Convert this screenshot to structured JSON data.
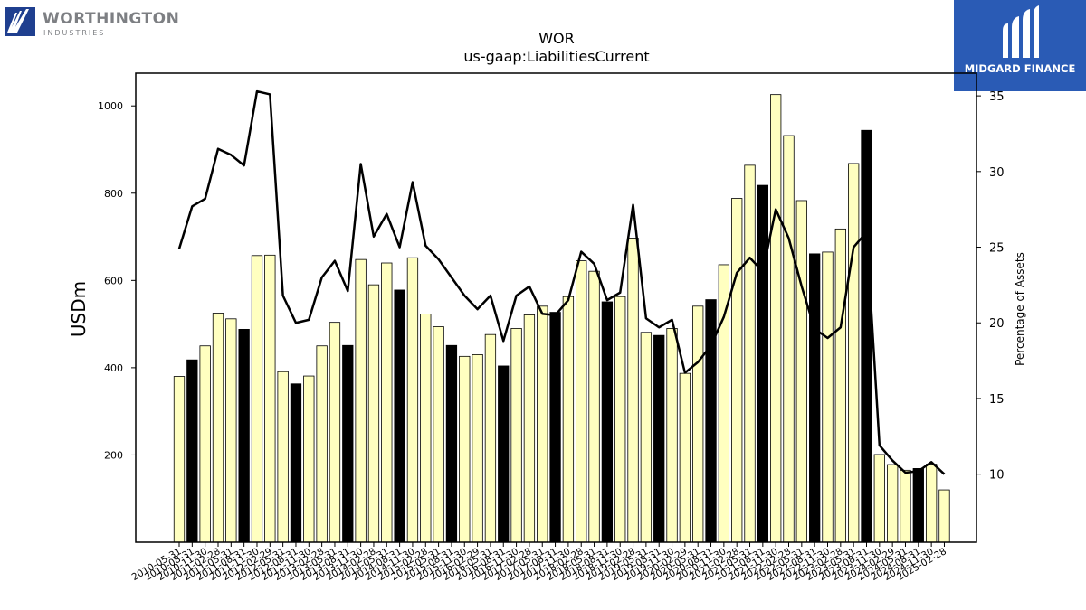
{
  "logos": {
    "left_name": "WORTHINGTON",
    "left_sub": "INDUSTRIES",
    "right_name": "MIDGARD FINANCE"
  },
  "colors": {
    "bar_fill": "#ffffc0",
    "bar_highlight": "#000000",
    "line": "#000000",
    "brand_blue": "#2a5bb5"
  },
  "chart_data": {
    "type": "bar",
    "title": "WOR",
    "subtitle": "us-gaap:LiabilitiesCurrent",
    "ylabel": "USDm",
    "y2label": "Percentage of Assets",
    "ylim": [
      0,
      1075
    ],
    "y2lim": [
      5.5,
      36.5
    ],
    "yticks": [
      200,
      400,
      600,
      800,
      1000
    ],
    "y2ticks": [
      10,
      15,
      20,
      25,
      30,
      35
    ],
    "legend": "none",
    "grid": false,
    "categories": [
      "2010-05-31",
      "2010-08-31",
      "2010-11-30",
      "2011-02-28",
      "2011-05-31",
      "2011-08-31",
      "2011-11-30",
      "2012-02-29",
      "2012-05-31",
      "2012-08-31",
      "2012-11-30",
      "2013-02-28",
      "2013-05-31",
      "2013-08-31",
      "2013-11-30",
      "2014-02-28",
      "2014-05-31",
      "2014-08-31",
      "2014-11-30",
      "2015-02-28",
      "2015-05-31",
      "2015-08-31",
      "2015-11-30",
      "2016-02-29",
      "2016-05-31",
      "2016-08-31",
      "2016-11-30",
      "2017-02-28",
      "2017-05-31",
      "2017-08-31",
      "2017-11-30",
      "2018-02-28",
      "2018-05-31",
      "2018-08-31",
      "2018-11-30",
      "2019-02-28",
      "2019-05-31",
      "2019-08-31",
      "2019-11-30",
      "2020-02-29",
      "2020-05-31",
      "2020-08-31",
      "2020-11-30",
      "2021-02-28",
      "2021-05-31",
      "2021-08-31",
      "2021-11-30",
      "2022-02-28",
      "2022-05-31",
      "2022-08-31",
      "2022-11-30",
      "2023-02-28",
      "2023-05-31",
      "2023-08-31",
      "2023-11-30",
      "2024-02-29",
      "2024-05-31",
      "2024-08-31",
      "2024-11-30",
      "2025-02-28"
    ],
    "series": [
      {
        "type": "bar",
        "values": [
          380,
          418,
          450,
          525,
          512,
          488,
          657,
          658,
          391,
          363,
          381,
          450,
          504,
          451,
          648,
          590,
          640,
          578,
          652,
          523,
          494,
          451,
          426,
          430,
          476,
          404,
          490,
          521,
          541,
          527,
          563,
          645,
          621,
          551,
          563,
          697,
          481,
          474,
          490,
          387,
          541,
          556,
          636,
          788,
          864,
          818,
          1026,
          932,
          783,
          661,
          665,
          718,
          868,
          944,
          201,
          178,
          165,
          169,
          179,
          120
        ],
        "highlighted": [
          false,
          true,
          false,
          false,
          false,
          true,
          false,
          false,
          false,
          true,
          false,
          false,
          false,
          true,
          false,
          false,
          false,
          true,
          false,
          false,
          false,
          true,
          false,
          false,
          false,
          true,
          false,
          false,
          false,
          true,
          false,
          false,
          false,
          true,
          false,
          false,
          false,
          true,
          false,
          false,
          false,
          true,
          false,
          false,
          false,
          true,
          false,
          false,
          false,
          true,
          false,
          false,
          false,
          true,
          false,
          false,
          false,
          true,
          false,
          false
        ]
      },
      {
        "type": "line",
        "axis": "right",
        "values": [
          24.9,
          27.7,
          28.2,
          31.5,
          31.1,
          30.4,
          35.3,
          35.1,
          21.8,
          20.0,
          20.2,
          23.0,
          24.1,
          22.1,
          30.5,
          25.7,
          27.2,
          25.0,
          29.3,
          25.1,
          24.2,
          23.0,
          21.8,
          20.9,
          21.8,
          18.8,
          21.8,
          22.4,
          20.6,
          20.5,
          21.5,
          24.7,
          23.9,
          21.5,
          22.0,
          27.8,
          20.3,
          19.7,
          20.2,
          16.7,
          17.4,
          18.5,
          20.4,
          23.3,
          24.3,
          23.4,
          27.5,
          25.6,
          22.4,
          19.6,
          19.0,
          19.7,
          25.0,
          26.0,
          11.9,
          10.9,
          10.1,
          10.2,
          10.8,
          10.0
        ]
      }
    ]
  }
}
